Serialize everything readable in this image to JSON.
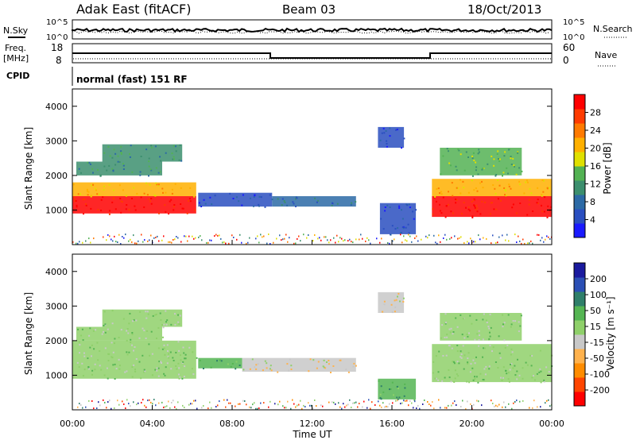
{
  "header": {
    "station": "Adak East (fitACF)",
    "beam": "Beam 03",
    "date": "18/Oct/2013",
    "cpid_mode": "normal (fast) 151 RF"
  },
  "left_labels": {
    "nsky": "N.Sky",
    "freq_line1": "Freq.",
    "freq_line2": "[MHz]",
    "cpid": "CPID"
  },
  "right_labels": {
    "nsearch": "N.Search",
    "nave": "Nave"
  },
  "scales": {
    "noise_top": "10^5",
    "noise_bottom": "10^0",
    "freq_top": "18",
    "freq_bottom": "8",
    "nave_top": "60",
    "nave_bottom": "0"
  },
  "colors": {
    "power": [
      "#1a1aff",
      "#2a4fc0",
      "#2c6aa6",
      "#3c8f6e",
      "#53b253",
      "#e0e000",
      "#ffb000",
      "#ff7a00",
      "#ff3b00",
      "#ff0000"
    ],
    "velocity": [
      "#ff0000",
      "#ff4500",
      "#ff8c00",
      "#ffb24d",
      "#c8c8c8",
      "#8fd06a",
      "#55b553",
      "#2f7f6a",
      "#2b4fb5",
      "#1a1a9e"
    ],
    "noise_line": "#000000"
  },
  "chart_data": [
    {
      "type": "heatmap",
      "title": "Power",
      "ylabel": "Slant Range [km]",
      "xlabel": "",
      "ylim": [
        0,
        4500
      ],
      "y_ticks": [
        1000,
        2000,
        3000,
        4000
      ],
      "colorbar_label": "Power [dB]",
      "colorbar_ticks": [
        "4",
        "8",
        "12",
        "16",
        "20",
        "24",
        "28"
      ],
      "colorbar_range": [
        0,
        32
      ],
      "regions": [
        {
          "t": [
            0.0,
            6.2
          ],
          "r": [
            900,
            1400
          ],
          "value": 30
        },
        {
          "t": [
            0.0,
            6.2
          ],
          "r": [
            1400,
            1800
          ],
          "value": 22
        },
        {
          "t": [
            0.2,
            4.5
          ],
          "r": [
            2000,
            2400
          ],
          "value": 12
        },
        {
          "t": [
            1.5,
            5.5
          ],
          "r": [
            2400,
            2900
          ],
          "value": 10
        },
        {
          "t": [
            6.3,
            10.0
          ],
          "r": [
            1100,
            1500
          ],
          "value": 6
        },
        {
          "t": [
            10.0,
            14.2
          ],
          "r": [
            1100,
            1400
          ],
          "value": 9
        },
        {
          "t": [
            15.4,
            17.2
          ],
          "r": [
            300,
            1200
          ],
          "value": 6
        },
        {
          "t": [
            15.3,
            16.6
          ],
          "r": [
            2800,
            3400
          ],
          "value": 6
        },
        {
          "t": [
            18.0,
            24.0
          ],
          "r": [
            800,
            1400
          ],
          "value": 29
        },
        {
          "t": [
            18.0,
            24.0
          ],
          "r": [
            1400,
            1900
          ],
          "value": 20
        },
        {
          "t": [
            18.4,
            22.5
          ],
          "r": [
            2000,
            2800
          ],
          "value": 13
        }
      ]
    },
    {
      "type": "heatmap",
      "title": "Velocity",
      "ylabel": "Slant Range [km]",
      "xlabel": "Time UT",
      "ylim": [
        0,
        4500
      ],
      "y_ticks": [
        1000,
        2000,
        3000,
        4000
      ],
      "x_ticks": [
        "00:00",
        "04:00",
        "08:00",
        "12:00",
        "16:00",
        "20:00",
        "00:00"
      ],
      "colorbar_label": "Velocity [m s⁻¹]",
      "colorbar_ticks": [
        "-200",
        "-100",
        "-50",
        "-15",
        "15",
        "50",
        "100",
        "200"
      ],
      "regions": [
        {
          "t": [
            0.0,
            6.2
          ],
          "r": [
            900,
            2000
          ],
          "value": 0
        },
        {
          "t": [
            0.2,
            4.5
          ],
          "r": [
            2000,
            2400
          ],
          "value": 0
        },
        {
          "t": [
            1.5,
            5.5
          ],
          "r": [
            2400,
            2900
          ],
          "value": 0
        },
        {
          "t": [
            6.3,
            8.5
          ],
          "r": [
            1200,
            1500
          ],
          "value": 40
        },
        {
          "t": [
            8.5,
            14.2
          ],
          "r": [
            1100,
            1500
          ],
          "value": -25
        },
        {
          "t": [
            15.3,
            17.2
          ],
          "r": [
            300,
            900
          ],
          "value": 40
        },
        {
          "t": [
            15.3,
            16.6
          ],
          "r": [
            2800,
            3400
          ],
          "value": -30
        },
        {
          "t": [
            18.0,
            24.0
          ],
          "r": [
            800,
            1900
          ],
          "value": 0
        },
        {
          "t": [
            18.4,
            22.5
          ],
          "r": [
            2000,
            2800
          ],
          "value": 0
        }
      ]
    }
  ]
}
